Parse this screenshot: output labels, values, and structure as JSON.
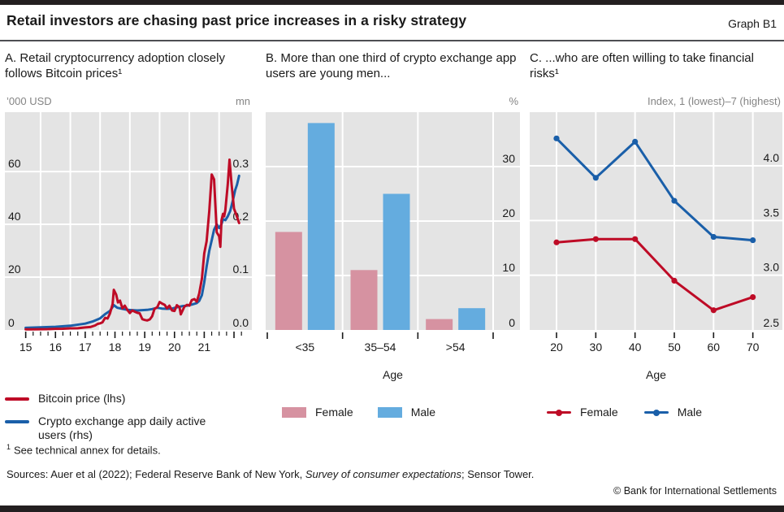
{
  "header": {
    "title": "Retail investors are chasing past price increases in a risky strategy",
    "graph_label": "Graph B1"
  },
  "colors": {
    "red": "#BE0B26",
    "blue": "#1A5FA9",
    "pink": "#D692A1",
    "light_blue": "#64ACDF",
    "plot_bg": "#E4E4E4",
    "grid": "#FFFFFF",
    "tick": "#1a1a1a",
    "unit_text": "#848484",
    "rule_bar": "#231F20"
  },
  "panels": [
    {
      "id": "A",
      "title": "A. Retail cryptocurrency adoption closely follows Bitcoin prices¹",
      "unit_left": "’000 USD",
      "unit_right": "mn",
      "legend": [
        {
          "label": "Bitcoin price (lhs)",
          "color": "#BE0B26",
          "type": "line"
        },
        {
          "label": "Crypto exchange app daily active users (rhs)",
          "color": "#1A5FA9",
          "type": "line"
        }
      ]
    },
    {
      "id": "B",
      "title": "B. More than one third of crypto exchange app users are young men...",
      "unit_left": "",
      "unit_right": "%",
      "x_label": "Age",
      "legend": [
        {
          "label": "Female",
          "color": "#D692A1",
          "type": "box"
        },
        {
          "label": "Male",
          "color": "#64ACDF",
          "type": "box"
        }
      ]
    },
    {
      "id": "C",
      "title": "C. ...who are often willing to take financial risks¹",
      "unit_left": "",
      "unit_right": "Index, 1 (lowest)–7 (highest)",
      "x_label": "Age",
      "legend": [
        {
          "label": "Female",
          "color": "#BE0B26",
          "type": "line-dot"
        },
        {
          "label": "Male",
          "color": "#1A5FA9",
          "type": "line-dot"
        }
      ]
    }
  ],
  "footnote": {
    "sup": "1",
    "text": "See technical annex for details."
  },
  "sources": {
    "prefix": "Sources: Auer et al (2022); Federal Reserve Bank of New York, ",
    "italic": "Survey of consumer expectations",
    "suffix": "; Sensor Tower."
  },
  "copyright": "© Bank for International Settlements",
  "chart_data": [
    {
      "type": "line",
      "title": "Retail cryptocurrency adoption closely follows Bitcoin prices",
      "x": {
        "min": 2014.3,
        "max": 2022.6,
        "data_start": 2015.0,
        "data_end": 2022.17
      },
      "y_left": {
        "min": 0,
        "max": 82.5,
        "ticks": [
          0,
          20,
          40,
          60
        ],
        "label": "'000 USD"
      },
      "y_right": {
        "min": 0,
        "max": 0.4125,
        "ticks": [
          "0.0",
          "0.1",
          "0.2",
          "0.3"
        ],
        "label": "mn"
      },
      "rhs_to_lhs": 200,
      "vgrid_years": [
        2015.5,
        2016.5,
        2017.5,
        2018.5,
        2019.5,
        2020.5,
        2021.5
      ],
      "x_tick_years": [
        2015,
        2016,
        2017,
        2018,
        2019,
        2020,
        2021
      ],
      "x_tick_labels": [
        "15",
        "16",
        "17",
        "18",
        "19",
        "20",
        "21"
      ],
      "quarter_tick_range": [
        2015.0,
        2022.25
      ],
      "series": [
        {
          "name": "Bitcoin price (lhs)",
          "axis": "lhs",
          "color": "#BE0B26",
          "points": [
            [
              2015.0,
              0.24
            ],
            [
              2015.25,
              0.24
            ],
            [
              2015.5,
              0.27
            ],
            [
              2015.75,
              0.31
            ],
            [
              2016.0,
              0.43
            ],
            [
              2016.25,
              0.45
            ],
            [
              2016.5,
              0.63
            ],
            [
              2016.75,
              0.66
            ],
            [
              2017.0,
              0.96
            ],
            [
              2017.17,
              1.1
            ],
            [
              2017.33,
              1.7
            ],
            [
              2017.42,
              2.3
            ],
            [
              2017.5,
              2.5
            ],
            [
              2017.58,
              2.9
            ],
            [
              2017.67,
              4.6
            ],
            [
              2017.75,
              4.3
            ],
            [
              2017.83,
              6.2
            ],
            [
              2017.92,
              9.8
            ],
            [
              2017.96,
              15.2
            ],
            [
              2018.04,
              13.4
            ],
            [
              2018.1,
              10.4
            ],
            [
              2018.17,
              11.1
            ],
            [
              2018.25,
              8.2
            ],
            [
              2018.33,
              9.2
            ],
            [
              2018.42,
              7.5
            ],
            [
              2018.5,
              6.4
            ],
            [
              2018.58,
              7.4
            ],
            [
              2018.67,
              6.9
            ],
            [
              2018.75,
              6.5
            ],
            [
              2018.83,
              6.3
            ],
            [
              2018.92,
              4.1
            ],
            [
              2019.0,
              3.8
            ],
            [
              2019.08,
              3.6
            ],
            [
              2019.17,
              4.0
            ],
            [
              2019.25,
              5.2
            ],
            [
              2019.33,
              8.0
            ],
            [
              2019.42,
              8.6
            ],
            [
              2019.5,
              10.6
            ],
            [
              2019.58,
              10.0
            ],
            [
              2019.67,
              9.5
            ],
            [
              2019.75,
              8.2
            ],
            [
              2019.83,
              9.2
            ],
            [
              2019.92,
              7.4
            ],
            [
              2020.0,
              7.2
            ],
            [
              2020.08,
              9.4
            ],
            [
              2020.17,
              8.6
            ],
            [
              2020.21,
              5.9
            ],
            [
              2020.25,
              6.8
            ],
            [
              2020.33,
              8.8
            ],
            [
              2020.42,
              9.5
            ],
            [
              2020.5,
              9.2
            ],
            [
              2020.58,
              11.3
            ],
            [
              2020.67,
              11.7
            ],
            [
              2020.75,
              10.7
            ],
            [
              2020.83,
              13.8
            ],
            [
              2020.92,
              19.4
            ],
            [
              2021.0,
              29.0
            ],
            [
              2021.08,
              33.6
            ],
            [
              2021.17,
              45.1
            ],
            [
              2021.25,
              58.9
            ],
            [
              2021.33,
              57.0
            ],
            [
              2021.42,
              37.0
            ],
            [
              2021.5,
              35.5
            ],
            [
              2021.54,
              31.5
            ],
            [
              2021.58,
              41.5
            ],
            [
              2021.63,
              44.0
            ],
            [
              2021.67,
              43.0
            ],
            [
              2021.71,
              45.5
            ],
            [
              2021.79,
              55.0
            ],
            [
              2021.85,
              64.5
            ],
            [
              2021.92,
              55.0
            ],
            [
              2022.0,
              46.0
            ],
            [
              2022.08,
              43.5
            ],
            [
              2022.17,
              40.5
            ]
          ]
        },
        {
          "name": "Crypto exchange app daily active users (rhs)",
          "axis": "rhs",
          "color": "#1A5FA9",
          "points": [
            [
              2015.0,
              0.004
            ],
            [
              2015.5,
              0.005
            ],
            [
              2016.0,
              0.006
            ],
            [
              2016.5,
              0.008
            ],
            [
              2017.0,
              0.012
            ],
            [
              2017.25,
              0.016
            ],
            [
              2017.5,
              0.022
            ],
            [
              2017.67,
              0.03
            ],
            [
              2017.83,
              0.036
            ],
            [
              2017.96,
              0.047
            ],
            [
              2018.08,
              0.042
            ],
            [
              2018.25,
              0.04
            ],
            [
              2018.42,
              0.038
            ],
            [
              2018.58,
              0.0375
            ],
            [
              2018.75,
              0.037
            ],
            [
              2018.92,
              0.0375
            ],
            [
              2019.08,
              0.038
            ],
            [
              2019.25,
              0.0395
            ],
            [
              2019.42,
              0.042
            ],
            [
              2019.58,
              0.0405
            ],
            [
              2019.75,
              0.04
            ],
            [
              2019.92,
              0.0405
            ],
            [
              2020.08,
              0.043
            ],
            [
              2020.25,
              0.045
            ],
            [
              2020.42,
              0.046
            ],
            [
              2020.58,
              0.048
            ],
            [
              2020.75,
              0.051
            ],
            [
              2020.83,
              0.055
            ],
            [
              2020.92,
              0.066
            ],
            [
              2021.0,
              0.09
            ],
            [
              2021.08,
              0.12
            ],
            [
              2021.17,
              0.15
            ],
            [
              2021.25,
              0.17
            ],
            [
              2021.33,
              0.19
            ],
            [
              2021.42,
              0.2
            ],
            [
              2021.5,
              0.193
            ],
            [
              2021.58,
              0.2
            ],
            [
              2021.63,
              0.21
            ],
            [
              2021.71,
              0.208
            ],
            [
              2021.79,
              0.215
            ],
            [
              2021.87,
              0.225
            ],
            [
              2021.96,
              0.245
            ],
            [
              2022.04,
              0.265
            ],
            [
              2022.1,
              0.275
            ],
            [
              2022.17,
              0.292
            ]
          ]
        }
      ]
    },
    {
      "type": "bar",
      "title": "More than one third of crypto exchange app users are young men",
      "categories": [
        "<35",
        "35–54",
        ">54"
      ],
      "series": [
        {
          "name": "Female",
          "color": "#D692A1",
          "values": [
            18,
            11,
            2
          ]
        },
        {
          "name": "Male",
          "color": "#64ACDF",
          "values": [
            38,
            25,
            4
          ]
        }
      ],
      "y": {
        "min": 0,
        "max": 40,
        "ticks": [
          0,
          10,
          20,
          30
        ]
      },
      "xlabel": "Age",
      "ylabel": "%"
    },
    {
      "type": "line",
      "title": "...who are often willing to take financial risks",
      "x_ticks": [
        20,
        30,
        40,
        50,
        60,
        70
      ],
      "y": {
        "min": 2.5,
        "max": 4.49,
        "ticks": [
          "2.5",
          "3.0",
          "3.5",
          "4.0"
        ]
      },
      "series": [
        {
          "name": "Female",
          "color": "#BE0B26",
          "values": [
            3.3,
            3.33,
            3.33,
            2.95,
            2.68,
            2.8
          ]
        },
        {
          "name": "Male",
          "color": "#1A5FA9",
          "values": [
            4.25,
            3.89,
            4.22,
            3.68,
            3.35,
            3.32
          ]
        }
      ],
      "xlabel": "Age",
      "ylabel": "Index, 1 (lowest)–7 (highest)"
    }
  ]
}
